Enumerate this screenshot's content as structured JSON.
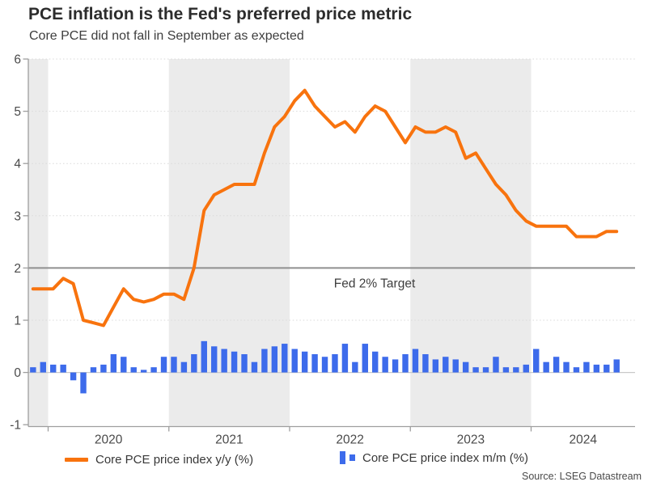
{
  "header": {
    "title": "PCE inflation is the Fed's preferred price metric",
    "subtitle": "Core PCE did not fall in September as expected"
  },
  "source": "Source: LSEG Datastream",
  "legend": {
    "yoy": {
      "label": "Core PCE price index y/y (%)"
    },
    "mom": {
      "label": "Core PCE price index m/m (%)"
    }
  },
  "target_line": {
    "value": 2,
    "label": "Fed 2% Target"
  },
  "colors": {
    "yoy_line": "#f8730e",
    "mom_bar": "#3d6beb",
    "target_line": "#8f8f8f",
    "band": "#ebebeb",
    "grid": "#d9d9d9",
    "zero_line": "#c9c9c9",
    "axis": "#9e9e9e",
    "text": "#4a4a4a",
    "annotation_text": "#3e3e3e"
  },
  "chart_data": {
    "type": "line+bar",
    "title": "PCE inflation is the Fed's preferred price metric",
    "subtitle": "Core PCE did not fall in September as expected",
    "ylim": [
      -1,
      6
    ],
    "yticks": [
      6,
      5,
      4,
      3,
      2,
      1,
      0,
      -1
    ],
    "xticks": [
      "2020",
      "2021",
      "2022",
      "2023",
      "2024"
    ],
    "grid": "horizontal-dotted",
    "legend_position": "bottom",
    "shaded_x_bands": [
      "2019-11 to 2019-12",
      "2021",
      "2023"
    ],
    "annotations": [
      {
        "text": "Fed 2% Target",
        "y": 2
      }
    ],
    "x": [
      "2019-11",
      "2019-12",
      "2020-01",
      "2020-02",
      "2020-03",
      "2020-04",
      "2020-05",
      "2020-06",
      "2020-07",
      "2020-08",
      "2020-09",
      "2020-10",
      "2020-11",
      "2020-12",
      "2021-01",
      "2021-02",
      "2021-03",
      "2021-04",
      "2021-05",
      "2021-06",
      "2021-07",
      "2021-08",
      "2021-09",
      "2021-10",
      "2021-11",
      "2021-12",
      "2022-01",
      "2022-02",
      "2022-03",
      "2022-04",
      "2022-05",
      "2022-06",
      "2022-07",
      "2022-08",
      "2022-09",
      "2022-10",
      "2022-11",
      "2022-12",
      "2023-01",
      "2023-02",
      "2023-03",
      "2023-04",
      "2023-05",
      "2023-06",
      "2023-07",
      "2023-08",
      "2023-09",
      "2023-10",
      "2023-11",
      "2023-12",
      "2024-01",
      "2024-02",
      "2024-03",
      "2024-04",
      "2024-05",
      "2024-06",
      "2024-07",
      "2024-08",
      "2024-09"
    ],
    "series": [
      {
        "name": "Core PCE price index y/y (%)",
        "type": "line",
        "color": "#f8730e",
        "values": [
          1.6,
          1.6,
          1.6,
          1.8,
          1.7,
          1.0,
          0.95,
          0.9,
          1.25,
          1.6,
          1.4,
          1.35,
          1.4,
          1.5,
          1.5,
          1.4,
          2.0,
          3.1,
          3.4,
          3.5,
          3.6,
          3.6,
          3.6,
          4.2,
          4.7,
          4.9,
          5.2,
          5.4,
          5.1,
          4.9,
          4.7,
          4.8,
          4.6,
          4.9,
          5.1,
          5.0,
          4.7,
          4.4,
          4.7,
          4.6,
          4.6,
          4.7,
          4.6,
          4.1,
          4.2,
          3.9,
          3.6,
          3.4,
          3.1,
          2.9,
          2.8,
          2.8,
          2.8,
          2.8,
          2.6,
          2.6,
          2.6,
          2.7,
          2.7
        ]
      },
      {
        "name": "Core PCE price index m/m (%)",
        "type": "bar",
        "color": "#3d6beb",
        "values": [
          0.1,
          0.2,
          0.15,
          0.15,
          -0.15,
          -0.4,
          0.1,
          0.15,
          0.35,
          0.3,
          0.1,
          0.05,
          0.1,
          0.3,
          0.3,
          0.2,
          0.35,
          0.6,
          0.5,
          0.45,
          0.4,
          0.35,
          0.2,
          0.45,
          0.5,
          0.55,
          0.45,
          0.4,
          0.35,
          0.3,
          0.35,
          0.55,
          0.2,
          0.55,
          0.4,
          0.3,
          0.25,
          0.35,
          0.45,
          0.35,
          0.25,
          0.3,
          0.25,
          0.2,
          0.1,
          0.1,
          0.3,
          0.1,
          0.1,
          0.15,
          0.45,
          0.2,
          0.3,
          0.2,
          0.1,
          0.2,
          0.15,
          0.15,
          0.25
        ]
      }
    ]
  }
}
